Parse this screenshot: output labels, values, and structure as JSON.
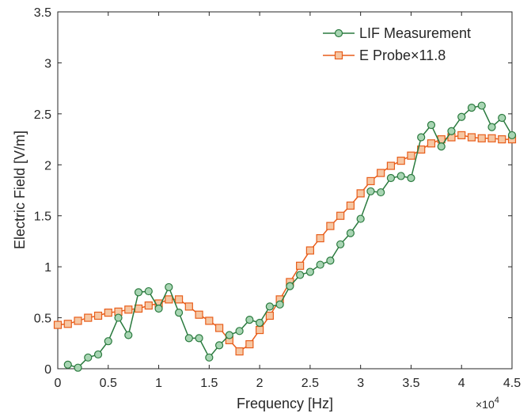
{
  "chart_data": {
    "type": "line",
    "title": "",
    "xlabel": "Frequency [Hz]",
    "ylabel": "Electric Field [V/m]",
    "x_multiplier_label": "×10",
    "x_multiplier_exponent": "4",
    "xlim": [
      0,
      4.5
    ],
    "ylim": [
      0,
      3.5
    ],
    "xticks": [
      0,
      0.5,
      1,
      1.5,
      2,
      2.5,
      3,
      3.5,
      4,
      4.5
    ],
    "xtick_labels": [
      "0",
      "0.5",
      "1",
      "1.5",
      "2",
      "2.5",
      "3",
      "3.5",
      "4",
      "4.5"
    ],
    "yticks": [
      0,
      0.5,
      1,
      1.5,
      2,
      2.5,
      3,
      3.5
    ],
    "ytick_labels": [
      "0",
      "0.5",
      "1",
      "1.5",
      "2",
      "2.5",
      "3",
      "3.5"
    ],
    "grid": false,
    "legend_position": "top-right",
    "series": [
      {
        "name": "LIF Measurement",
        "color": "#2a7a3e",
        "marker": "circle",
        "marker_fill": "#a8d5b3",
        "x": [
          0.1,
          0.2,
          0.3,
          0.4,
          0.5,
          0.6,
          0.7,
          0.8,
          0.9,
          1.0,
          1.1,
          1.2,
          1.3,
          1.4,
          1.5,
          1.6,
          1.7,
          1.8,
          1.9,
          2.0,
          2.1,
          2.2,
          2.3,
          2.4,
          2.5,
          2.6,
          2.7,
          2.8,
          2.9,
          3.0,
          3.1,
          3.2,
          3.3,
          3.4,
          3.5,
          3.6,
          3.7,
          3.8,
          3.9,
          4.0,
          4.1,
          4.2,
          4.3,
          4.4,
          4.5
        ],
        "y": [
          0.04,
          0.01,
          0.11,
          0.14,
          0.27,
          0.5,
          0.33,
          0.75,
          0.76,
          0.59,
          0.8,
          0.55,
          0.3,
          0.3,
          0.11,
          0.23,
          0.33,
          0.37,
          0.48,
          0.45,
          0.61,
          0.63,
          0.81,
          0.92,
          0.95,
          1.02,
          1.06,
          1.22,
          1.33,
          1.47,
          1.74,
          1.73,
          1.87,
          1.89,
          1.87,
          2.27,
          2.39,
          2.18,
          2.33,
          2.47,
          2.56,
          2.58,
          2.37,
          2.46,
          2.29
        ]
      },
      {
        "name": "E Probe×11.8",
        "color": "#e85d1a",
        "marker": "square",
        "marker_fill": "#f6c7a3",
        "x": [
          0.0,
          0.1,
          0.2,
          0.3,
          0.4,
          0.5,
          0.6,
          0.7,
          0.8,
          0.9,
          1.0,
          1.1,
          1.2,
          1.3,
          1.4,
          1.5,
          1.6,
          1.7,
          1.8,
          1.9,
          2.0,
          2.1,
          2.2,
          2.3,
          2.4,
          2.5,
          2.6,
          2.7,
          2.8,
          2.9,
          3.0,
          3.1,
          3.2,
          3.3,
          3.4,
          3.5,
          3.6,
          3.7,
          3.8,
          3.9,
          4.0,
          4.1,
          4.2,
          4.3,
          4.4,
          4.5
        ],
        "y": [
          0.43,
          0.44,
          0.47,
          0.5,
          0.52,
          0.55,
          0.56,
          0.58,
          0.59,
          0.62,
          0.64,
          0.68,
          0.68,
          0.61,
          0.53,
          0.47,
          0.4,
          0.28,
          0.17,
          0.24,
          0.38,
          0.52,
          0.68,
          0.85,
          1.01,
          1.16,
          1.28,
          1.4,
          1.5,
          1.6,
          1.72,
          1.84,
          1.92,
          1.99,
          2.04,
          2.09,
          2.15,
          2.21,
          2.25,
          2.27,
          2.29,
          2.27,
          2.26,
          2.26,
          2.25,
          2.25
        ]
      }
    ]
  }
}
